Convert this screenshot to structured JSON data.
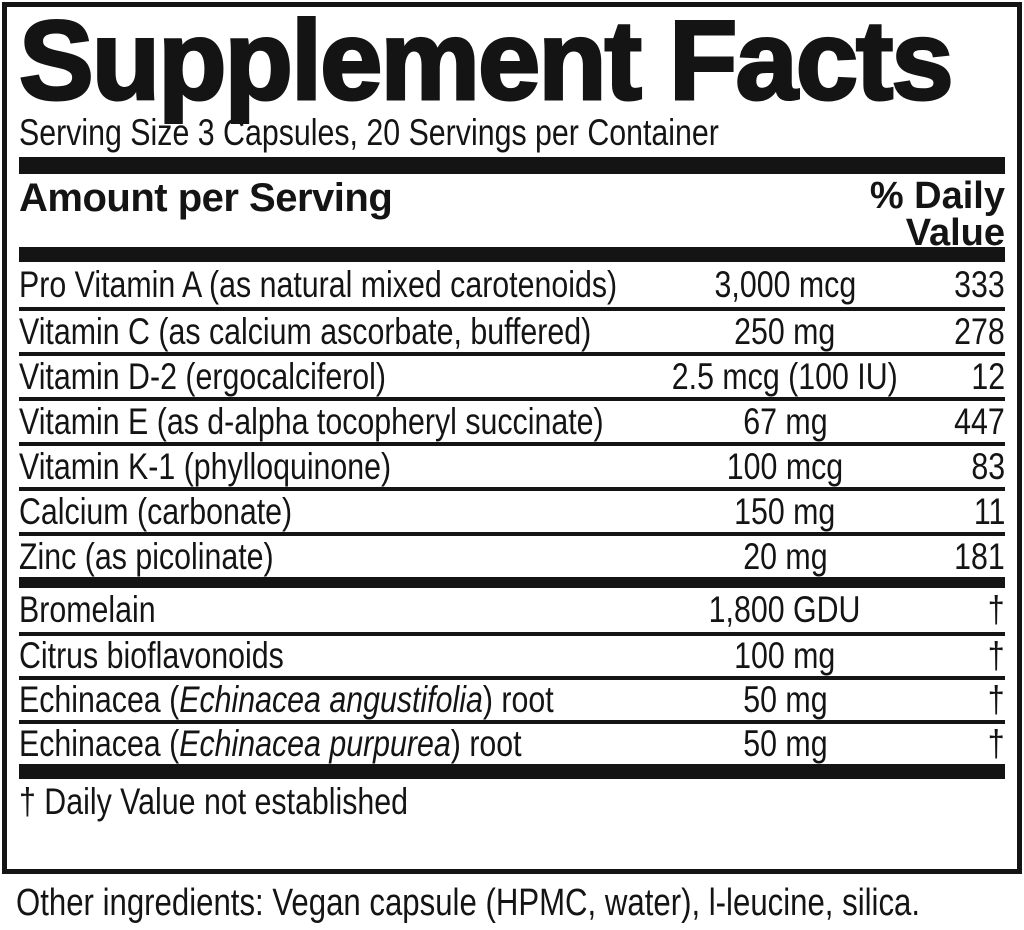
{
  "panel": {
    "title": "Supplement Facts",
    "serving_info": "Serving Size 3 Capsules, 20 Servings per Container",
    "columns": {
      "amount_header": "Amount per Serving",
      "dv_header_line1": "% Daily",
      "dv_header_line2": "Value"
    },
    "footnote": "† Daily Value not established",
    "other_ingredients": "Other ingredients: Vegan capsule (HPMC, water), l-leucine, silica.",
    "colors": {
      "ink": "#141414",
      "background": "#ffffff"
    }
  },
  "rows": [
    {
      "name": "Pro Vitamin A (as natural mixed carotenoids)",
      "name_italic": "",
      "name_end": "",
      "amount": "3,000 mcg",
      "dv": "333"
    },
    {
      "name": "Vitamin C (as calcium ascorbate, buffered)",
      "name_italic": "",
      "name_end": "",
      "amount": "250 mg",
      "dv": "278"
    },
    {
      "name": "Vitamin D-2 (ergocalciferol)",
      "name_italic": "",
      "name_end": "",
      "amount": "2.5 mcg (100 IU)",
      "dv": "12"
    },
    {
      "name": "Vitamin E (as d-alpha tocopheryl succinate)",
      "name_italic": "",
      "name_end": "",
      "amount": "67 mg",
      "dv": "447"
    },
    {
      "name": "Vitamin K-1 (phylloquinone)",
      "name_italic": "",
      "name_end": "",
      "amount": "100 mcg",
      "dv": "83"
    },
    {
      "name": "Calcium (carbonate)",
      "name_italic": "",
      "name_end": "",
      "amount": "150 mg",
      "dv": "11"
    },
    {
      "name": "Zinc (as picolinate)",
      "name_italic": "",
      "name_end": "",
      "amount": "20 mg",
      "dv": "181"
    },
    {
      "name": "Bromelain",
      "name_italic": "",
      "name_end": "",
      "amount": "1,800 GDU",
      "dv": "†"
    },
    {
      "name": "Citrus bioflavonoids",
      "name_italic": "",
      "name_end": "",
      "amount": "100 mg",
      "dv": "†"
    },
    {
      "name": "Echinacea (",
      "name_italic": "Echinacea angustifolia",
      "name_end": ") root",
      "amount": "50 mg",
      "dv": "†"
    },
    {
      "name": "Echinacea (",
      "name_italic": "Echinacea purpurea",
      "name_end": ") root",
      "amount": "50 mg",
      "dv": "†"
    }
  ]
}
